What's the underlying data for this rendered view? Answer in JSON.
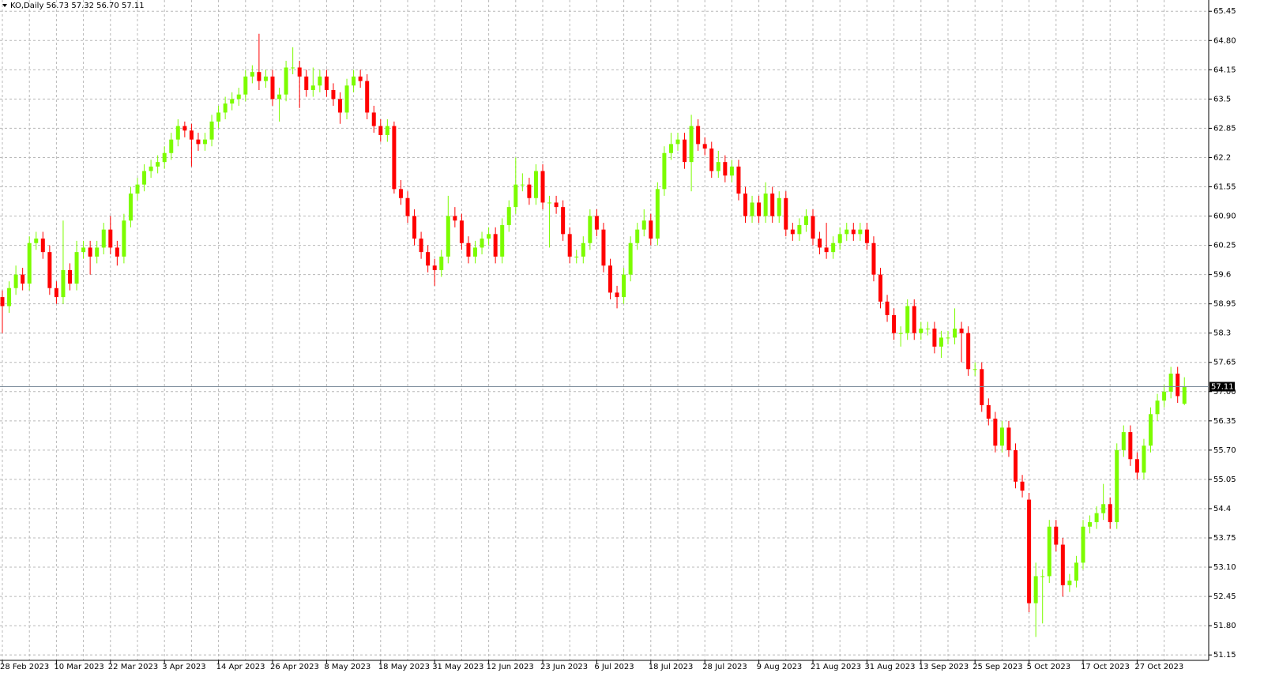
{
  "chart_data": {
    "type": "candlestick",
    "title": "KO,Daily  56.73 57.32 56.70 57.11",
    "up_color": "#7cfc00",
    "down_color": "#ff0000",
    "grid": true,
    "categories": [
      "28 Feb 2023",
      null,
      null,
      null,
      null,
      null,
      null,
      null,
      "10 Mar 2023",
      null,
      null,
      null,
      null,
      null,
      null,
      null,
      "22 Mar 2023",
      null,
      null,
      null,
      null,
      null,
      null,
      null,
      "3 Apr 2023",
      null,
      null,
      null,
      null,
      null,
      null,
      null,
      "14 Apr 2023",
      null,
      null,
      null,
      null,
      null,
      null,
      null,
      "26 Apr 2023",
      null,
      null,
      null,
      null,
      null,
      null,
      null,
      "8 May 2023",
      null,
      null,
      null,
      null,
      null,
      null,
      null,
      "18 May 2023",
      null,
      null,
      null,
      null,
      null,
      null,
      null,
      "31 May 2023",
      null,
      null,
      null,
      null,
      null,
      null,
      null,
      "12 Jun 2023",
      null,
      null,
      null,
      null,
      null,
      null,
      null,
      "23 Jun 2023",
      null,
      null,
      null,
      null,
      null,
      null,
      null,
      "6 Jul 2023",
      null,
      null,
      null,
      null,
      null,
      null,
      null,
      "18 Jul 2023",
      null,
      null,
      null,
      null,
      null,
      null,
      null,
      "28 Jul 2023",
      null,
      null,
      null,
      null,
      null,
      null,
      null,
      "9 Aug 2023",
      null,
      null,
      null,
      null,
      null,
      null,
      null,
      "21 Aug 2023",
      null,
      null,
      null,
      null,
      null,
      null,
      null,
      "31 Aug 2023",
      null,
      null,
      null,
      null,
      null,
      null,
      null,
      "13 Sep 2023",
      null,
      null,
      null,
      null,
      null,
      null,
      null,
      "25 Sep 2023",
      null,
      null,
      null,
      null,
      null,
      null,
      null,
      "5 Oct 2023",
      null,
      null,
      null,
      null,
      null,
      null,
      null,
      "17 Oct 2023",
      null,
      null,
      null,
      null,
      null,
      null,
      null,
      "27 Oct 2023",
      null,
      null,
      null,
      null,
      null,
      null,
      null
    ],
    "ohlc": [
      [
        59.1,
        59.25,
        58.3,
        58.9
      ],
      [
        58.9,
        59.45,
        58.75,
        59.3
      ],
      [
        59.3,
        59.8,
        59.15,
        59.6
      ],
      [
        59.6,
        59.75,
        59.25,
        59.4
      ],
      [
        59.4,
        60.45,
        59.25,
        60.3
      ],
      [
        60.3,
        60.55,
        60.15,
        60.4
      ],
      [
        60.4,
        60.55,
        59.95,
        60.1
      ],
      [
        60.1,
        60.25,
        59.15,
        59.3
      ],
      [
        59.3,
        59.45,
        58.95,
        59.1
      ],
      [
        59.1,
        60.8,
        58.95,
        59.7
      ],
      [
        59.7,
        59.85,
        59.25,
        59.4
      ],
      [
        59.4,
        60.35,
        59.25,
        60.1
      ],
      [
        60.1,
        60.35,
        59.95,
        60.2
      ],
      [
        60.2,
        60.35,
        59.6,
        60.0
      ],
      [
        60.0,
        60.35,
        59.85,
        60.2
      ],
      [
        60.2,
        60.75,
        60.05,
        60.6
      ],
      [
        60.6,
        60.9,
        60.05,
        60.2
      ],
      [
        60.2,
        60.35,
        59.8,
        60.0
      ],
      [
        60.0,
        60.95,
        59.85,
        60.8
      ],
      [
        60.8,
        61.55,
        60.65,
        61.4
      ],
      [
        61.4,
        61.75,
        61.25,
        61.6
      ],
      [
        61.6,
        62.05,
        61.45,
        61.9
      ],
      [
        61.9,
        62.15,
        61.75,
        62.0
      ],
      [
        62.0,
        62.25,
        61.85,
        62.1
      ],
      [
        62.1,
        62.45,
        61.95,
        62.3
      ],
      [
        62.3,
        62.75,
        62.15,
        62.6
      ],
      [
        62.6,
        63.05,
        62.45,
        62.9
      ],
      [
        62.9,
        63.0,
        62.65,
        62.8
      ],
      [
        62.8,
        62.95,
        62.0,
        62.6
      ],
      [
        62.6,
        62.75,
        62.35,
        62.5
      ],
      [
        62.5,
        62.75,
        62.35,
        62.6
      ],
      [
        62.6,
        63.15,
        62.45,
        63.0
      ],
      [
        63.0,
        63.35,
        62.85,
        63.2
      ],
      [
        63.2,
        63.55,
        63.05,
        63.4
      ],
      [
        63.4,
        63.65,
        63.25,
        63.5
      ],
      [
        63.5,
        63.75,
        63.35,
        63.6
      ],
      [
        63.6,
        64.15,
        63.45,
        64.0
      ],
      [
        64.0,
        64.25,
        63.85,
        64.1
      ],
      [
        64.1,
        64.95,
        63.7,
        63.9
      ],
      [
        63.9,
        64.15,
        63.75,
        64.0
      ],
      [
        64.0,
        64.15,
        63.35,
        63.5
      ],
      [
        63.5,
        63.75,
        63.0,
        63.6
      ],
      [
        63.6,
        64.35,
        63.45,
        64.2
      ],
      [
        64.2,
        64.65,
        64.05,
        64.2
      ],
      [
        64.2,
        64.35,
        63.3,
        64.0
      ],
      [
        64.0,
        64.15,
        63.55,
        63.7
      ],
      [
        63.7,
        64.2,
        63.55,
        63.8
      ],
      [
        63.8,
        64.15,
        63.65,
        64.0
      ],
      [
        64.0,
        64.15,
        63.55,
        63.7
      ],
      [
        63.7,
        63.85,
        63.35,
        63.5
      ],
      [
        63.5,
        63.65,
        62.95,
        63.2
      ],
      [
        63.2,
        63.95,
        63.05,
        63.8
      ],
      [
        63.8,
        64.15,
        63.65,
        64.0
      ],
      [
        64.0,
        64.15,
        63.75,
        63.9
      ],
      [
        63.9,
        64.05,
        63.05,
        63.2
      ],
      [
        63.2,
        63.35,
        62.75,
        62.9
      ],
      [
        62.9,
        63.05,
        62.55,
        62.7
      ],
      [
        62.7,
        63.05,
        62.55,
        62.9
      ],
      [
        62.9,
        63.0,
        61.4,
        61.5
      ],
      [
        61.5,
        61.7,
        61.15,
        61.3
      ],
      [
        61.3,
        61.45,
        60.75,
        60.9
      ],
      [
        60.9,
        61.05,
        60.25,
        60.4
      ],
      [
        60.4,
        60.55,
        59.95,
        60.1
      ],
      [
        60.1,
        60.25,
        59.65,
        59.8
      ],
      [
        59.8,
        59.95,
        59.35,
        59.7
      ],
      [
        59.7,
        60.15,
        59.55,
        60.0
      ],
      [
        60.0,
        61.35,
        59.85,
        60.9
      ],
      [
        60.9,
        61.1,
        60.65,
        60.8
      ],
      [
        60.8,
        60.95,
        60.15,
        60.3
      ],
      [
        60.3,
        60.45,
        59.85,
        60.0
      ],
      [
        60.0,
        60.35,
        59.85,
        60.2
      ],
      [
        60.2,
        60.55,
        60.05,
        60.4
      ],
      [
        60.4,
        60.65,
        60.25,
        60.5
      ],
      [
        60.5,
        60.65,
        59.85,
        60.0
      ],
      [
        60.0,
        60.85,
        59.85,
        60.7
      ],
      [
        60.7,
        61.25,
        60.55,
        61.1
      ],
      [
        61.1,
        62.2,
        60.95,
        61.6
      ],
      [
        61.6,
        61.85,
        61.45,
        61.6
      ],
      [
        61.6,
        61.75,
        61.15,
        61.3
      ],
      [
        61.3,
        62.05,
        61.15,
        61.9
      ],
      [
        61.9,
        62.05,
        61.05,
        61.2
      ],
      [
        61.2,
        61.35,
        60.2,
        61.2
      ],
      [
        61.2,
        61.35,
        60.95,
        61.1
      ],
      [
        61.1,
        61.25,
        60.35,
        60.5
      ],
      [
        60.5,
        60.65,
        59.85,
        60.0
      ],
      [
        60.0,
        60.15,
        59.85,
        60.0
      ],
      [
        60.0,
        60.45,
        59.85,
        60.3
      ],
      [
        60.3,
        61.05,
        60.15,
        60.9
      ],
      [
        60.9,
        61.05,
        60.45,
        60.6
      ],
      [
        60.6,
        60.75,
        59.65,
        59.8
      ],
      [
        59.8,
        59.95,
        59.05,
        59.2
      ],
      [
        59.2,
        59.35,
        58.85,
        59.1
      ],
      [
        59.1,
        59.75,
        58.95,
        59.6
      ],
      [
        59.6,
        60.45,
        59.45,
        60.3
      ],
      [
        60.3,
        60.75,
        60.15,
        60.6
      ],
      [
        60.6,
        61.05,
        60.45,
        60.8
      ],
      [
        60.8,
        60.95,
        60.25,
        60.4
      ],
      [
        60.4,
        61.65,
        60.25,
        61.5
      ],
      [
        61.5,
        62.45,
        61.35,
        62.3
      ],
      [
        62.3,
        62.75,
        62.15,
        62.5
      ],
      [
        62.5,
        62.75,
        62.35,
        62.6
      ],
      [
        62.6,
        62.75,
        61.95,
        62.1
      ],
      [
        62.1,
        63.15,
        61.45,
        62.9
      ],
      [
        62.9,
        63.05,
        62.35,
        62.5
      ],
      [
        62.5,
        62.65,
        62.25,
        62.4
      ],
      [
        62.4,
        62.55,
        61.75,
        61.9
      ],
      [
        61.9,
        62.35,
        61.75,
        62.1
      ],
      [
        62.1,
        62.25,
        61.65,
        61.8
      ],
      [
        61.8,
        62.15,
        61.65,
        62.0
      ],
      [
        62.0,
        62.15,
        61.25,
        61.4
      ],
      [
        61.4,
        61.55,
        60.75,
        60.9
      ],
      [
        60.9,
        61.35,
        60.75,
        61.2
      ],
      [
        61.2,
        61.35,
        60.75,
        60.9
      ],
      [
        60.9,
        61.65,
        60.75,
        61.4
      ],
      [
        61.4,
        61.55,
        60.75,
        60.9
      ],
      [
        60.9,
        61.45,
        60.75,
        61.3
      ],
      [
        61.3,
        61.45,
        60.45,
        60.6
      ],
      [
        60.6,
        60.75,
        60.35,
        60.5
      ],
      [
        60.5,
        60.85,
        60.35,
        60.7
      ],
      [
        60.7,
        61.05,
        60.55,
        60.9
      ],
      [
        60.9,
        61.05,
        60.25,
        60.4
      ],
      [
        60.4,
        60.55,
        60.05,
        60.2
      ],
      [
        60.2,
        60.75,
        59.95,
        60.1
      ],
      [
        60.1,
        60.45,
        59.95,
        60.3
      ],
      [
        60.3,
        60.65,
        60.15,
        60.5
      ],
      [
        60.5,
        60.75,
        60.35,
        60.6
      ],
      [
        60.6,
        60.75,
        60.35,
        60.5
      ],
      [
        60.5,
        60.75,
        60.35,
        60.6
      ],
      [
        60.6,
        60.75,
        60.15,
        60.3
      ],
      [
        60.3,
        60.45,
        59.45,
        59.6
      ],
      [
        59.6,
        59.75,
        58.85,
        59.0
      ],
      [
        59.0,
        59.15,
        58.55,
        58.7
      ],
      [
        58.7,
        58.85,
        58.15,
        58.3
      ],
      [
        58.3,
        58.45,
        58.0,
        58.3
      ],
      [
        58.3,
        59.05,
        58.15,
        58.9
      ],
      [
        58.9,
        59.05,
        58.15,
        58.3
      ],
      [
        58.3,
        58.55,
        58.15,
        58.4
      ],
      [
        58.4,
        58.55,
        58.25,
        58.4
      ],
      [
        58.4,
        58.55,
        57.85,
        58.0
      ],
      [
        58.0,
        58.35,
        57.75,
        58.2
      ],
      [
        58.2,
        58.35,
        58.05,
        58.2
      ],
      [
        58.2,
        58.85,
        58.05,
        58.4
      ],
      [
        58.4,
        58.55,
        57.65,
        58.3
      ],
      [
        58.3,
        58.45,
        57.35,
        57.5
      ],
      [
        57.5,
        57.65,
        57.35,
        57.5
      ],
      [
        57.5,
        57.65,
        56.55,
        56.7
      ],
      [
        56.7,
        56.85,
        56.25,
        56.4
      ],
      [
        56.4,
        56.55,
        55.65,
        55.8
      ],
      [
        55.8,
        56.35,
        55.65,
        56.2
      ],
      [
        56.2,
        56.35,
        55.55,
        55.7
      ],
      [
        55.7,
        55.85,
        54.85,
        55.0
      ],
      [
        55.0,
        55.15,
        54.65,
        54.8
      ],
      [
        54.6,
        54.75,
        52.1,
        52.3
      ],
      [
        52.3,
        53.2,
        51.55,
        52.9
      ],
      [
        52.9,
        53.05,
        51.85,
        52.9
      ],
      [
        52.9,
        54.15,
        52.75,
        54.0
      ],
      [
        54.0,
        54.15,
        53.45,
        53.6
      ],
      [
        53.6,
        53.75,
        52.45,
        52.7
      ],
      [
        52.7,
        52.95,
        52.55,
        52.8
      ],
      [
        52.8,
        53.35,
        52.65,
        53.2
      ],
      [
        53.2,
        54.15,
        53.05,
        54.0
      ],
      [
        54.0,
        54.25,
        53.85,
        54.1
      ],
      [
        54.1,
        54.45,
        53.95,
        54.3
      ],
      [
        54.3,
        54.95,
        54.15,
        54.5
      ],
      [
        54.5,
        54.65,
        53.95,
        54.1
      ],
      [
        54.1,
        55.85,
        53.95,
        55.7
      ],
      [
        55.7,
        56.25,
        55.55,
        56.1
      ],
      [
        56.1,
        56.25,
        55.35,
        55.5
      ],
      [
        55.5,
        55.65,
        55.05,
        55.2
      ],
      [
        55.2,
        55.95,
        55.05,
        55.8
      ],
      [
        55.8,
        56.65,
        55.65,
        56.5
      ],
      [
        56.5,
        56.95,
        56.35,
        56.8
      ],
      [
        56.8,
        57.15,
        56.65,
        57.0
      ],
      [
        57.0,
        57.55,
        56.85,
        57.4
      ],
      [
        57.4,
        57.55,
        56.75,
        56.9
      ],
      [
        56.73,
        57.32,
        56.7,
        57.11
      ]
    ],
    "ylim": [
      51.03,
      65.7
    ],
    "yticks": [
      65.45,
      {
        "value": 64.8,
        "label": "64.80"
      },
      64.15,
      63.5,
      62.85,
      62.2,
      61.55,
      {
        "value": 60.9,
        "label": "60.90"
      },
      60.25,
      59.6,
      58.95,
      58.3,
      57.65,
      {
        "value": 57.0,
        "label": "57.00"
      },
      56.35,
      {
        "value": 55.7,
        "label": "55.70"
      },
      55.05,
      54.4,
      53.75,
      {
        "value": 53.1,
        "label": "53.10"
      },
      52.45,
      {
        "value": 51.8,
        "label": "51.80"
      },
      51.15
    ],
    "last_price": 57.11
  }
}
